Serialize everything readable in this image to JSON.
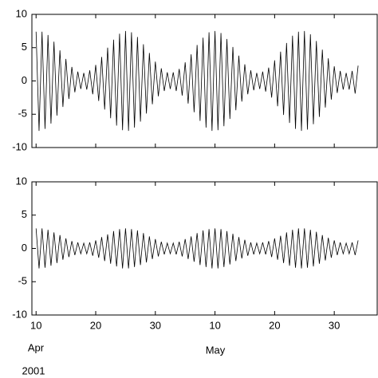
{
  "chart_data": [
    {
      "type": "line",
      "x": [
        100,
        100.5,
        101,
        101.5,
        102,
        102.5,
        103,
        103.5,
        104,
        104.5,
        105,
        105.5,
        106,
        106.5,
        107,
        107.5,
        108,
        108.5,
        109,
        109.5,
        110,
        110.5,
        111,
        111.5,
        112,
        112.5,
        113,
        113.5,
        114,
        114.5,
        115,
        115.5,
        116,
        116.5,
        117,
        117.5,
        118,
        118.5,
        119,
        119.5,
        120,
        120.5,
        121,
        121.5,
        122,
        122.5,
        123,
        123.5,
        124,
        124.5,
        125,
        125.5,
        126,
        126.5,
        127,
        127.5,
        128,
        128.5,
        129,
        129.5,
        130,
        130.5,
        131,
        131.5,
        132,
        132.5,
        133,
        133.5,
        134,
        134.5,
        135,
        135.5,
        136,
        136.5,
        137,
        137.5,
        138,
        138.5,
        139,
        139.5,
        140,
        140.5,
        141,
        141.5,
        142,
        142.5,
        143,
        143.5,
        144,
        144.5,
        145,
        145.5,
        146,
        146.5,
        147,
        147.5,
        148,
        148.5,
        149,
        149.5,
        150,
        150.5,
        151,
        151.5,
        152,
        152.5,
        153,
        153.5,
        154
      ],
      "series": [
        {
          "color": "#000000",
          "values": [
            7.4,
            -7.5,
            7.4,
            -7.2,
            6.9,
            -6.4,
            5.9,
            -5.2,
            4.6,
            -3.9,
            3.3,
            -2.7,
            2.1,
            -1.7,
            1.4,
            -1.2,
            1.2,
            -1.3,
            1.6,
            -2.0,
            2.4,
            -3.0,
            3.6,
            -4.3,
            5.0,
            -5.6,
            6.2,
            -6.7,
            7.1,
            -7.4,
            7.5,
            -7.5,
            7.3,
            -7.0,
            6.6,
            -6.1,
            5.5,
            -4.9,
            4.2,
            -3.5,
            2.9,
            -2.3,
            1.9,
            -1.5,
            1.3,
            -1.2,
            1.3,
            -1.5,
            1.8,
            -2.2,
            2.8,
            -3.4,
            4.0,
            -4.7,
            5.4,
            -6.0,
            6.5,
            -7.0,
            7.3,
            -7.5,
            7.5,
            -7.4,
            7.2,
            -6.8,
            6.3,
            -5.7,
            5.1,
            -4.4,
            3.8,
            -3.1,
            2.5,
            -2.0,
            1.6,
            -1.4,
            1.2,
            -1.2,
            1.4,
            -1.6,
            2.0,
            -2.5,
            3.1,
            -3.8,
            4.4,
            -5.1,
            5.7,
            -6.3,
            6.8,
            -7.2,
            7.4,
            -7.5,
            7.5,
            -7.3,
            7.0,
            -6.5,
            6.0,
            -5.4,
            4.7,
            -4.0,
            3.4,
            -2.8,
            2.2,
            -1.8,
            1.5,
            -1.3,
            1.2,
            -1.3,
            1.5,
            -1.9,
            2.3
          ]
        }
      ],
      "xlim": [
        99.3,
        157.2
      ],
      "xticks": [
        {
          "value": 100,
          "label": "10"
        },
        {
          "value": 110,
          "label": "20"
        },
        {
          "value": 120,
          "label": "30"
        },
        {
          "value": 130,
          "label": "10"
        },
        {
          "value": 140,
          "label": "20"
        },
        {
          "value": 150,
          "label": "30"
        }
      ],
      "ylim": [
        -10,
        10
      ],
      "yticks": [
        -10,
        -5,
        0,
        5,
        10
      ]
    },
    {
      "type": "line",
      "x": [
        100,
        100.5,
        101,
        101.5,
        102,
        102.5,
        103,
        103.5,
        104,
        104.5,
        105,
        105.5,
        106,
        106.5,
        107,
        107.5,
        108,
        108.5,
        109,
        109.5,
        110,
        110.5,
        111,
        111.5,
        112,
        112.5,
        113,
        113.5,
        114,
        114.5,
        115,
        115.5,
        116,
        116.5,
        117,
        117.5,
        118,
        118.5,
        119,
        119.5,
        120,
        120.5,
        121,
        121.5,
        122,
        122.5,
        123,
        123.5,
        124,
        124.5,
        125,
        125.5,
        126,
        126.5,
        127,
        127.5,
        128,
        128.5,
        129,
        129.5,
        130,
        130.5,
        131,
        131.5,
        132,
        132.5,
        133,
        133.5,
        134,
        134.5,
        135,
        135.5,
        136,
        136.5,
        137,
        137.5,
        138,
        138.5,
        139,
        139.5,
        140,
        140.5,
        141,
        141.5,
        142,
        142.5,
        143,
        143.5,
        144,
        144.5,
        145,
        145.5,
        146,
        146.5,
        147,
        147.5,
        148,
        148.5,
        149,
        149.5,
        150,
        150.5,
        151,
        151.5,
        152,
        152.5,
        153,
        153.5,
        154
      ],
      "series": [
        {
          "color": "#000000",
          "values": [
            3.0,
            -3.0,
            3.0,
            -2.9,
            2.8,
            -2.6,
            2.4,
            -2.2,
            2.0,
            -1.7,
            1.5,
            -1.3,
            1.1,
            -1.0,
            0.9,
            -0.8,
            0.8,
            -0.8,
            0.9,
            -1.1,
            1.2,
            -1.4,
            1.7,
            -1.9,
            2.1,
            -2.3,
            2.6,
            -2.7,
            2.9,
            -3.0,
            3.0,
            -3.0,
            2.9,
            -2.8,
            2.7,
            -2.5,
            2.3,
            -2.1,
            1.8,
            -1.6,
            1.4,
            -1.2,
            1.0,
            -0.9,
            0.8,
            -0.8,
            0.8,
            -0.9,
            1.0,
            -1.2,
            1.4,
            -1.6,
            1.8,
            -2.0,
            2.3,
            -2.5,
            2.7,
            -2.8,
            2.9,
            -3.0,
            3.0,
            -3.0,
            2.9,
            -2.8,
            2.6,
            -2.4,
            2.2,
            -1.9,
            1.7,
            -1.5,
            1.3,
            -1.1,
            0.9,
            -0.9,
            0.8,
            -0.8,
            0.9,
            -0.9,
            1.1,
            -1.3,
            1.5,
            -1.7,
            1.9,
            -2.2,
            2.4,
            -2.6,
            2.8,
            -2.9,
            3.0,
            -3.0,
            3.0,
            -2.9,
            2.8,
            -2.7,
            2.5,
            -2.3,
            2.0,
            -1.8,
            1.6,
            -1.4,
            1.2,
            -1.0,
            0.9,
            -0.8,
            0.8,
            -0.8,
            0.9,
            -1.0,
            1.2
          ]
        }
      ],
      "xlim": [
        99.3,
        157.2
      ],
      "xticks": [
        {
          "value": 100,
          "label": "10"
        },
        {
          "value": 110,
          "label": "20"
        },
        {
          "value": 120,
          "label": "30"
        },
        {
          "value": 130,
          "label": "10"
        },
        {
          "value": 140,
          "label": "20"
        },
        {
          "value": 150,
          "label": "30"
        }
      ],
      "ylim": [
        -10,
        10
      ],
      "yticks": [
        -10,
        -5,
        0,
        5,
        10
      ],
      "annotations": [
        "Apr",
        "May",
        "2001"
      ]
    }
  ]
}
